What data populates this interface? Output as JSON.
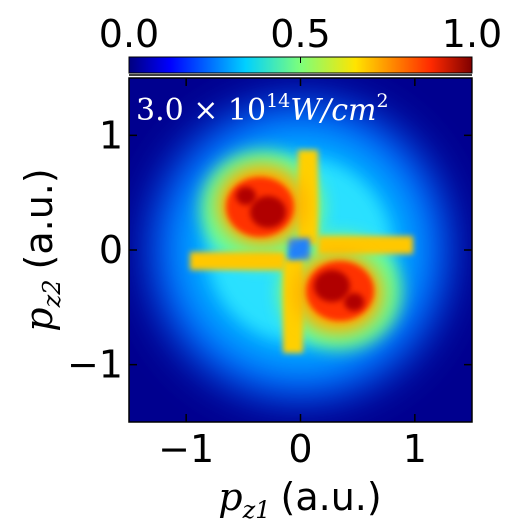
{
  "chart_data": {
    "type": "heatmap",
    "title": "",
    "annotation": {
      "base": "3.0 × 10",
      "exponent": "14",
      "unit": "W/cm",
      "unit_exp": "2"
    },
    "xlabel": {
      "symbol": "p",
      "subscript": "z1",
      "unit": "(a.u.)"
    },
    "ylabel": {
      "symbol": "p",
      "subscript": "z2",
      "unit": "(a.u.)"
    },
    "xlim": [
      -1.5,
      1.5
    ],
    "ylim": [
      -1.5,
      1.5
    ],
    "x_ticks": [
      -1,
      0,
      1
    ],
    "y_ticks": [
      -1,
      0,
      1
    ],
    "x_tick_labels": [
      "−1",
      "0",
      "1"
    ],
    "y_tick_labels": [
      "−1",
      "0",
      "1"
    ],
    "colorbar": {
      "range": [
        0.0,
        1.0
      ],
      "ticks": [
        0.0,
        0.5,
        1.0
      ],
      "tick_labels": [
        "0.0",
        "0.5",
        "1.0"
      ],
      "colormap": "jet",
      "position": "top"
    },
    "features": [
      {
        "name": "peak-upper-left",
        "x": -0.35,
        "y": 0.4,
        "value": 1.0
      },
      {
        "name": "peak-lower-right",
        "x": 0.35,
        "y": -0.4,
        "value": 1.0
      },
      {
        "name": "streak-vertical-upper",
        "x": 0.02,
        "y": 0.75,
        "value": 0.75
      },
      {
        "name": "streak-vertical-lower",
        "x": -0.02,
        "y": -0.75,
        "value": 0.75
      },
      {
        "name": "streak-horizontal-right",
        "x": 0.7,
        "y": 0.05,
        "value": 0.7
      },
      {
        "name": "streak-horizontal-left",
        "x": -0.7,
        "y": -0.05,
        "value": 0.7
      },
      {
        "name": "halo",
        "x": 0,
        "y": 0,
        "value": 0.35,
        "radius": 0.9
      }
    ]
  }
}
